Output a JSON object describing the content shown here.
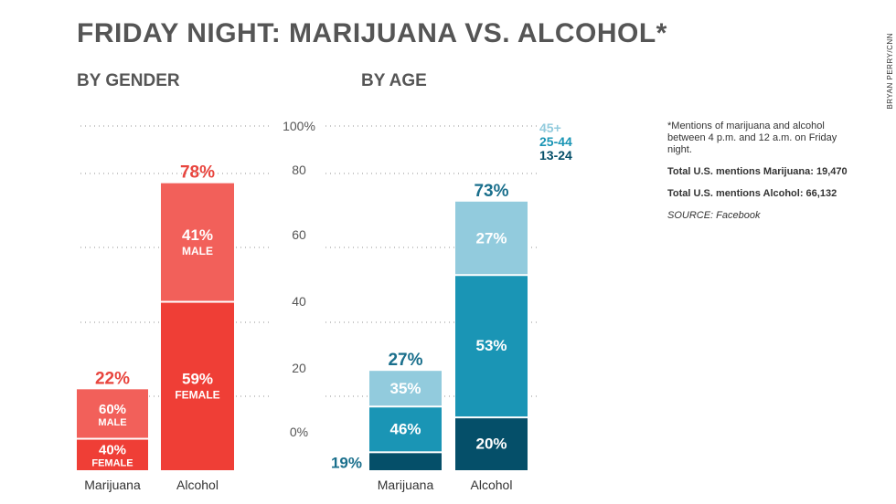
{
  "header": {
    "title": "FRIDAY NIGHT: MARIJUANA VS. ALCOHOL*",
    "credit": "BRYAN PERRY/CNN",
    "gender_heading": "BY GENDER",
    "age_heading": "BY AGE"
  },
  "notes": {
    "footnote": "*Mentions of marijuana and alcohol between 4 p.m. and 12 a.m. on Friday night.",
    "marijuana_total": "Total U.S. mentions Marijuana: 19,470",
    "alcohol_total": "Total U.S. mentions Alcohol: 66,132",
    "source": "SOURCE: Facebook"
  },
  "legend": [
    {
      "label": "45+",
      "color": "#92cbdd"
    },
    {
      "label": "25-44",
      "color": "#1a95b5"
    },
    {
      "label": "13-24",
      "color": "#054f69"
    }
  ],
  "colors": {
    "gender_light": "#f2605a",
    "gender_dark": "#ef3e36",
    "gender_label": "#e8453e",
    "age_label": "#1a6f8c",
    "grid": "#c8c8c8",
    "axis_text": "#555555"
  },
  "chart_data": [
    {
      "type": "bar",
      "title": "BY GENDER",
      "stacked": true,
      "categories": [
        "Marijuana",
        "Alcohol"
      ],
      "totals": [
        22,
        78
      ],
      "total_labels": [
        "22%",
        "78%"
      ],
      "segments": [
        {
          "category": "Marijuana",
          "parts": [
            {
              "share_label": "40%",
              "name": "FEMALE",
              "share": 40
            },
            {
              "share_label": "60%",
              "name": "MALE",
              "share": 60
            }
          ]
        },
        {
          "category": "Alcohol",
          "parts": [
            {
              "share_label": "59%",
              "name": "FEMALE",
              "share": 59
            },
            {
              "share_label": "41%",
              "name": "MALE",
              "share": 41
            }
          ]
        }
      ],
      "ylim": [
        0,
        100
      ],
      "grid": true
    },
    {
      "type": "bar",
      "title": "BY AGE",
      "stacked": true,
      "categories": [
        "Marijuana",
        "Alcohol"
      ],
      "totals": [
        27,
        73
      ],
      "total_labels": [
        "27%",
        "73%"
      ],
      "segments": [
        {
          "category": "Marijuana",
          "parts": [
            {
              "share_label": "19%",
              "name": "13-24",
              "share": 19
            },
            {
              "share_label": "46%",
              "name": "25-44",
              "share": 46
            },
            {
              "share_label": "35%",
              "name": "45+",
              "share": 35
            }
          ]
        },
        {
          "category": "Alcohol",
          "parts": [
            {
              "share_label": "20%",
              "name": "13-24",
              "share": 20
            },
            {
              "share_label": "53%",
              "name": "25-44",
              "share": 53
            },
            {
              "share_label": "27%",
              "name": "45+",
              "share": 27
            }
          ]
        }
      ],
      "ylim": [
        0,
        100
      ],
      "yticks": [
        "0%",
        "20",
        "40",
        "60",
        "80",
        "100%"
      ],
      "grid": true
    }
  ]
}
